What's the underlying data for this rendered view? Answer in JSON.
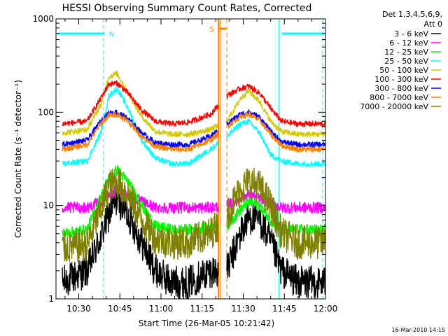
{
  "chart_data": {
    "type": "line",
    "title": "HESSI Observing Summary Count Rates, Corrected",
    "xlabel": "Start Time (26-Mar-05 10:21:42)",
    "ylabel": "Corrected Count Rate (s⁻¹ detector⁻¹)",
    "yscale": "log",
    "ylim": [
      1,
      1000
    ],
    "xlim": [
      "10:21:42",
      "12:00:00"
    ],
    "x_ticks": [
      "10:30",
      "10:45",
      "11:00",
      "11:15",
      "11:30",
      "11:45",
      "12:00"
    ],
    "y_ticks": [
      "1",
      "10",
      "100",
      "1000"
    ],
    "grid": false,
    "legend_position": "right",
    "legend_header": [
      "Det 1,3,4,5,6,9,",
      "Att 0"
    ],
    "data_gap": [
      "11:21",
      "11:24"
    ],
    "series": [
      {
        "name": "3 - 6 keV",
        "color": "#000000",
        "x": [
          "10:24",
          "10:33",
          "10:38",
          "10:41",
          "10:44",
          "10:48",
          "10:53",
          "10:58",
          "11:04",
          "11:10",
          "11:18",
          "11:24",
          "11:29",
          "11:32",
          "11:36",
          "11:40",
          "11:44",
          "11:50",
          "11:56",
          "12:00"
        ],
        "values": [
          1.5,
          2.0,
          4.5,
          8.0,
          12,
          8.0,
          4.0,
          2.0,
          1.5,
          1.5,
          2.0,
          2.0,
          5.0,
          7.5,
          7.0,
          4.0,
          2.0,
          1.5,
          1.5,
          1.5
        ]
      },
      {
        "name": "6 - 12 keV",
        "color": "#ff00ff",
        "x": [
          "10:24",
          "10:33",
          "10:38",
          "10:41",
          "10:44",
          "10:48",
          "10:53",
          "10:58",
          "11:04",
          "11:10",
          "11:18",
          "11:24",
          "11:29",
          "11:32",
          "11:36",
          "11:40",
          "11:44",
          "11:50",
          "11:56",
          "12:00"
        ],
        "values": [
          9.5,
          9.5,
          11,
          13,
          15,
          13,
          11,
          9.5,
          9.5,
          9.5,
          9.5,
          10,
          12,
          13,
          12,
          10.5,
          9.5,
          9.5,
          9.5,
          9.5
        ]
      },
      {
        "name": "12 - 25 keV",
        "color": "#00ff00",
        "x": [
          "10:24",
          "10:33",
          "10:38",
          "10:41",
          "10:44",
          "10:48",
          "10:53",
          "10:58",
          "11:04",
          "11:10",
          "11:18",
          "11:24",
          "11:29",
          "11:32",
          "11:36",
          "11:40",
          "11:44",
          "11:50",
          "11:56",
          "12:00"
        ],
        "values": [
          5.0,
          5.5,
          12,
          20,
          24,
          18,
          10,
          6.0,
          5.5,
          5.5,
          6.0,
          6.0,
          9.0,
          11,
          10,
          7.0,
          5.5,
          5.5,
          5.5,
          5.5
        ]
      },
      {
        "name": "25 - 50 keV",
        "color": "#00ffff",
        "x": [
          "10:24",
          "10:33",
          "10:38",
          "10:41",
          "10:44",
          "10:48",
          "10:53",
          "10:58",
          "11:04",
          "11:10",
          "11:18",
          "11:24",
          "11:29",
          "11:32",
          "11:36",
          "11:40",
          "11:44",
          "11:50",
          "11:56",
          "12:00"
        ],
        "values": [
          28,
          30,
          60,
          150,
          180,
          110,
          50,
          32,
          28,
          28,
          40,
          55,
          75,
          80,
          60,
          35,
          30,
          28,
          28,
          28
        ]
      },
      {
        "name": "50 - 100 keV",
        "color": "#d6c800",
        "x": [
          "10:24",
          "10:33",
          "10:38",
          "10:41",
          "10:44",
          "10:48",
          "10:53",
          "10:58",
          "11:04",
          "11:10",
          "11:18",
          "11:24",
          "11:29",
          "11:32",
          "11:36",
          "11:40",
          "11:44",
          "11:50",
          "11:56",
          "12:00"
        ],
        "values": [
          60,
          65,
          120,
          240,
          260,
          160,
          90,
          62,
          58,
          58,
          65,
          80,
          140,
          170,
          130,
          80,
          62,
          58,
          58,
          58
        ]
      },
      {
        "name": "100 - 300 keV",
        "color": "#ff0000",
        "x": [
          "10:24",
          "10:33",
          "10:38",
          "10:41",
          "10:44",
          "10:48",
          "10:53",
          "10:58",
          "11:04",
          "11:10",
          "11:18",
          "11:24",
          "11:29",
          "11:32",
          "11:36",
          "11:40",
          "11:44",
          "11:50",
          "11:56",
          "12:00"
        ],
        "values": [
          75,
          80,
          140,
          200,
          205,
          160,
          105,
          80,
          75,
          78,
          95,
          150,
          180,
          190,
          160,
          110,
          80,
          75,
          75,
          75
        ]
      },
      {
        "name": "300 - 800 keV",
        "color": "#0000ff",
        "x": [
          "10:24",
          "10:33",
          "10:38",
          "10:41",
          "10:44",
          "10:48",
          "10:53",
          "10:58",
          "11:04",
          "11:10",
          "11:18",
          "11:24",
          "11:29",
          "11:32",
          "11:36",
          "11:40",
          "11:44",
          "11:50",
          "11:56",
          "12:00"
        ],
        "values": [
          45,
          50,
          80,
          98,
          100,
          85,
          60,
          47,
          45,
          45,
          55,
          75,
          95,
          100,
          88,
          62,
          48,
          45,
          45,
          45
        ]
      },
      {
        "name": "800 - 7000 keV",
        "color": "#ff8000",
        "x": [
          "10:24",
          "10:33",
          "10:38",
          "10:41",
          "10:44",
          "10:48",
          "10:53",
          "10:58",
          "11:04",
          "11:10",
          "11:18",
          "11:24",
          "11:29",
          "11:32",
          "11:36",
          "11:40",
          "11:44",
          "11:50",
          "11:56",
          "12:00"
        ],
        "values": [
          40,
          45,
          75,
          92,
          95,
          80,
          55,
          43,
          40,
          40,
          50,
          70,
          90,
          95,
          82,
          58,
          44,
          40,
          40,
          40
        ]
      },
      {
        "name": "7000 - 20000 keV",
        "color": "#7f7f00",
        "x": [
          "10:24",
          "10:33",
          "10:38",
          "10:41",
          "10:44",
          "10:48",
          "10:53",
          "10:58",
          "11:04",
          "11:10",
          "11:18",
          "11:24",
          "11:29",
          "11:32",
          "11:36",
          "11:40",
          "11:44",
          "11:50",
          "11:56",
          "12:00"
        ],
        "values": [
          3.5,
          3.8,
          9.0,
          16,
          18,
          13,
          7.0,
          4.5,
          4.0,
          4.0,
          5.0,
          8.0,
          15,
          18,
          16,
          10,
          5.0,
          4.0,
          4.0,
          4.0
        ]
      }
    ],
    "annotations": [
      {
        "text": "N",
        "color": "#00ffff",
        "at": "10:40",
        "kind": "night-bar"
      },
      {
        "text": "S",
        "color": "#ff8000",
        "at": "11:20",
        "kind": "saa-bar"
      }
    ]
  },
  "footer": {
    "timestamp": "16-Mar-2010 14:15"
  },
  "colors": {
    "night": "#00ffff",
    "saa": "#ff8000",
    "axis": "#000000",
    "background": "#ffffff"
  }
}
